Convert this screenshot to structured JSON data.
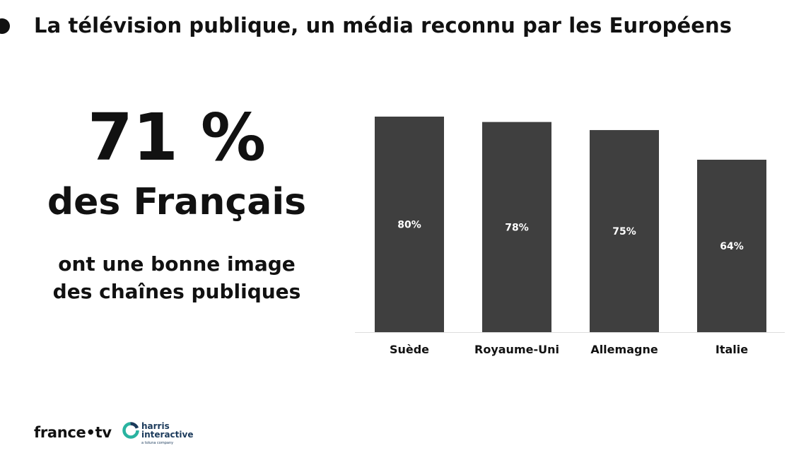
{
  "slide": {
    "title": "La télévision publique, un média reconnu par les Européens"
  },
  "highlight": {
    "percent": "71 %",
    "subject": "des Français",
    "caption_line1": "ont une bonne image",
    "caption_line2": "des chaînes publiques"
  },
  "colors": {
    "bar": "#3f3f3f",
    "bar_label": "#ffffff",
    "text": "#111111",
    "axis": "#dddddd",
    "harris_teal": "#29b3a0",
    "harris_navy": "#1b3a5b"
  },
  "chart_data": {
    "type": "bar",
    "title": "",
    "xlabel": "",
    "ylabel": "",
    "categories": [
      "Suède",
      "Royaume-Uni",
      "Allemagne",
      "Italie"
    ],
    "values": [
      80,
      78,
      75,
      64
    ],
    "value_labels": [
      "80%",
      "78%",
      "75%",
      "64%"
    ],
    "ylim": [
      0,
      80
    ],
    "grid": false,
    "legend": "none"
  },
  "footer": {
    "francetv_logo": "france•tv",
    "harris_line1": "harris",
    "harris_line2": "interactive",
    "harris_tagline": "a toluna company",
    "harris_icon": "harris-ring-icon"
  }
}
